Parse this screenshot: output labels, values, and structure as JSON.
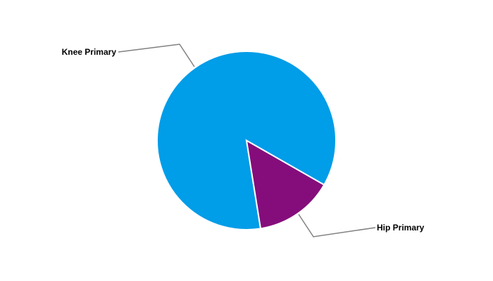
{
  "chart_data": {
    "type": "pie",
    "title": "",
    "slices": [
      {
        "label": "Knee Primary",
        "value": 85.8,
        "color": "#009de8"
      },
      {
        "label": "Hip Primary",
        "value": 14.2,
        "color": "#850d7b"
      }
    ],
    "legend": "none",
    "labels": "outside-with-leader-lines"
  }
}
